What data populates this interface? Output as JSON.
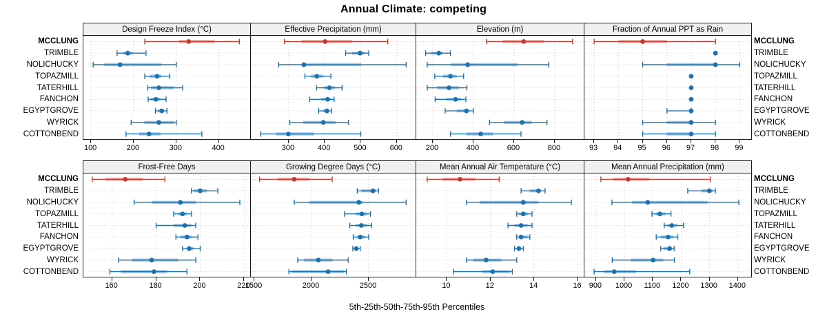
{
  "title": "Annual Climate: competing",
  "caption": "5th-25th-50th-75th-95th Percentiles",
  "percentile_labels": [
    "5th",
    "25th",
    "50th",
    "75th",
    "95th"
  ],
  "stations": [
    "MCCLUNG",
    "TRIMBLE",
    "NOLICHUCKY",
    "TOPAZMILL",
    "TATERHILL",
    "FANCHON",
    "EGYPTGROVE",
    "WYRICK",
    "COTTONBEND"
  ],
  "highlight_station": "MCCLUNG",
  "colors": {
    "highlight": "#c03a2f",
    "normal": "#1c72ae",
    "band_opacity": 0.42,
    "grid_vertical": "#c8c8c8",
    "grid_row": "#d2d2d2",
    "grid_row_highlight": "#efb8b2",
    "header_bg": "#f0f0f0",
    "border": "#1a1a1a"
  },
  "chart_data": [
    {
      "type": "dot-interval",
      "title": "Design Freeze Index (°C)",
      "row": 0,
      "col": 0,
      "xlim": [
        82,
        475
      ],
      "ticks": [
        100,
        200,
        300,
        400
      ],
      "series": [
        {
          "name": "MCCLUNG",
          "percentiles": [
            226,
            306,
            329,
            390,
            448
          ]
        },
        {
          "name": "TRIMBLE",
          "percentiles": [
            161,
            176,
            186,
            198,
            229
          ]
        },
        {
          "name": "NOLICHUCKY",
          "percentiles": [
            105,
            131,
            168,
            265,
            300
          ]
        },
        {
          "name": "TOPAZMILL",
          "percentiles": [
            226,
            238,
            255,
            265,
            284
          ]
        },
        {
          "name": "TATERHILL",
          "percentiles": [
            233,
            241,
            259,
            295,
            315
          ]
        },
        {
          "name": "FANCHON",
          "percentiles": [
            234,
            240,
            252,
            263,
            276
          ]
        },
        {
          "name": "EGYPTGROVE",
          "percentiles": [
            251,
            257,
            266,
            271,
            278
          ]
        },
        {
          "name": "WYRICK",
          "percentiles": [
            194,
            225,
            259,
            295,
            300
          ]
        },
        {
          "name": "COTTONBEND",
          "percentiles": [
            182,
            213,
            236,
            263,
            360
          ]
        }
      ]
    },
    {
      "type": "dot-interval",
      "title": "Effective Precipitation (mm)",
      "row": 0,
      "col": 1,
      "xlim": [
        195,
        654
      ],
      "ticks": [
        300,
        400,
        500,
        600
      ],
      "series": [
        {
          "name": "MCCLUNG",
          "percentiles": [
            288,
            336,
            401,
            476,
            575
          ]
        },
        {
          "name": "TRIMBLE",
          "percentiles": [
            458,
            476,
            498,
            511,
            522
          ]
        },
        {
          "name": "NOLICHUCKY",
          "percentiles": [
            272,
            339,
            342,
            501,
            626
          ]
        },
        {
          "name": "TOPAZMILL",
          "percentiles": [
            345,
            362,
            378,
            396,
            417
          ]
        },
        {
          "name": "TATERHILL",
          "percentiles": [
            377,
            398,
            413,
            428,
            448
          ]
        },
        {
          "name": "FANCHON",
          "percentiles": [
            358,
            390,
            408,
            416,
            426
          ]
        },
        {
          "name": "EGYPTGROVE",
          "percentiles": [
            383,
            396,
            406,
            412,
            419
          ]
        },
        {
          "name": "WYRICK",
          "percentiles": [
            303,
            340,
            396,
            430,
            466
          ]
        },
        {
          "name": "COTTONBEND",
          "percentiles": [
            222,
            265,
            299,
            371,
            500
          ]
        }
      ]
    },
    {
      "type": "dot-interval",
      "title": "Elevation (m)",
      "row": 0,
      "col": 2,
      "xlim": [
        119,
        946
      ],
      "ticks": [
        200,
        400,
        600,
        800
      ],
      "series": [
        {
          "name": "MCCLUNG",
          "percentiles": [
            464,
            545,
            647,
            748,
            888
          ]
        },
        {
          "name": "TRIMBLE",
          "percentiles": [
            165,
            193,
            230,
            250,
            287
          ]
        },
        {
          "name": "NOLICHUCKY",
          "percentiles": [
            173,
            289,
            372,
            617,
            770
          ]
        },
        {
          "name": "TOPAZMILL",
          "percentiles": [
            210,
            250,
            287,
            318,
            352
          ]
        },
        {
          "name": "TATERHILL",
          "percentiles": [
            173,
            221,
            280,
            329,
            368
          ]
        },
        {
          "name": "FANCHON",
          "percentiles": [
            212,
            267,
            312,
            340,
            363
          ]
        },
        {
          "name": "EGYPTGROVE",
          "percentiles": [
            261,
            318,
            366,
            375,
            400
          ]
        },
        {
          "name": "WYRICK",
          "percentiles": [
            479,
            550,
            640,
            687,
            762
          ]
        },
        {
          "name": "COTTONBEND",
          "percentiles": [
            287,
            366,
            436,
            496,
            634
          ]
        }
      ]
    },
    {
      "type": "dot-interval",
      "title": "Fraction of Annual PPT as Rain",
      "row": 0,
      "col": 3,
      "xlim": [
        92.6,
        99.5
      ],
      "ticks": [
        93,
        94,
        95,
        96,
        97,
        98,
        99
      ],
      "series": [
        {
          "name": "MCCLUNG",
          "percentiles": [
            93,
            94,
            95,
            96,
            98
          ]
        },
        {
          "name": "TRIMBLE",
          "percentiles": [
            98,
            98,
            98,
            98,
            98
          ]
        },
        {
          "name": "NOLICHUCKY",
          "percentiles": [
            95,
            96,
            98,
            98,
            99
          ]
        },
        {
          "name": "TOPAZMILL",
          "percentiles": [
            97,
            97,
            97,
            97,
            97
          ]
        },
        {
          "name": "TATERHILL",
          "percentiles": [
            97,
            97,
            97,
            97,
            97
          ]
        },
        {
          "name": "FANCHON",
          "percentiles": [
            97,
            97,
            97,
            97,
            97
          ]
        },
        {
          "name": "EGYPTGROVE",
          "percentiles": [
            96,
            97,
            97,
            97,
            97
          ]
        },
        {
          "name": "WYRICK",
          "percentiles": [
            95,
            96,
            97,
            97,
            98
          ]
        },
        {
          "name": "COTTONBEND",
          "percentiles": [
            95,
            96,
            97,
            97,
            98
          ]
        }
      ]
    },
    {
      "type": "dot-interval",
      "title": "Frost-Free Days",
      "row": 1,
      "col": 0,
      "xlim": [
        147,
        223
      ],
      "ticks": [
        160,
        180,
        200,
        220
      ],
      "series": [
        {
          "name": "MCCLUNG",
          "percentiles": [
            151,
            157,
            166,
            174,
            184
          ]
        },
        {
          "name": "TRIMBLE",
          "percentiles": [
            196,
            197,
            200,
            203,
            208
          ]
        },
        {
          "name": "NOLICHUCKY",
          "percentiles": [
            170,
            178,
            191,
            198,
            218
          ]
        },
        {
          "name": "TOPAZMILL",
          "percentiles": [
            188,
            190,
            192,
            194,
            196
          ]
        },
        {
          "name": "TATERHILL",
          "percentiles": [
            180,
            188,
            193,
            196,
            198
          ]
        },
        {
          "name": "FANCHON",
          "percentiles": [
            189,
            191,
            194,
            196,
            199
          ]
        },
        {
          "name": "EGYPTGROVE",
          "percentiles": [
            192,
            194,
            195,
            197,
            200
          ]
        },
        {
          "name": "WYRICK",
          "percentiles": [
            163,
            169,
            178,
            190,
            198
          ]
        },
        {
          "name": "COTTONBEND",
          "percentiles": [
            159,
            164,
            179,
            185,
            194
          ]
        }
      ]
    },
    {
      "type": "dot-interval",
      "title": "Growing Degree Days (°C)",
      "row": 1,
      "col": 1,
      "xlim": [
        1470,
        2916
      ],
      "ticks": [
        1500,
        2000,
        2500
      ],
      "series": [
        {
          "name": "MCCLUNG",
          "percentiles": [
            1546,
            1703,
            1849,
            1984,
            2181
          ]
        },
        {
          "name": "TRIMBLE",
          "percentiles": [
            2400,
            2436,
            2538,
            2562,
            2586
          ]
        },
        {
          "name": "NOLICHUCKY",
          "percentiles": [
            1849,
            1980,
            2414,
            2450,
            2827
          ]
        },
        {
          "name": "TOPAZMILL",
          "percentiles": [
            2289,
            2385,
            2440,
            2482,
            2516
          ]
        },
        {
          "name": "TATERHILL",
          "percentiles": [
            2335,
            2390,
            2436,
            2486,
            2526
          ]
        },
        {
          "name": "FANCHON",
          "percentiles": [
            2365,
            2402,
            2426,
            2470,
            2500
          ]
        },
        {
          "name": "EGYPTGROVE",
          "percentiles": [
            2361,
            2375,
            2392,
            2410,
            2426
          ]
        },
        {
          "name": "WYRICK",
          "percentiles": [
            1880,
            1934,
            2060,
            2185,
            2321
          ]
        },
        {
          "name": "COTTONBEND",
          "percentiles": [
            1803,
            1823,
            2145,
            2285,
            2305
          ]
        }
      ]
    },
    {
      "type": "dot-interval",
      "title": "Mean Annual Air Temperature (°C)",
      "row": 1,
      "col": 2,
      "xlim": [
        8.6,
        16.3
      ],
      "ticks": [
        10,
        12,
        14,
        16
      ],
      "series": [
        {
          "name": "MCCLUNG",
          "percentiles": [
            9.1,
            9.8,
            10.6,
            11.3,
            12.4
          ]
        },
        {
          "name": "TRIMBLE",
          "percentiles": [
            13.4,
            13.8,
            14.2,
            14.3,
            14.5
          ]
        },
        {
          "name": "NOLICHUCKY",
          "percentiles": [
            10.9,
            11.5,
            13.5,
            14.2,
            15.7
          ]
        },
        {
          "name": "TOPAZMILL",
          "percentiles": [
            13.2,
            13.3,
            13.5,
            13.7,
            13.9
          ]
        },
        {
          "name": "TATERHILL",
          "percentiles": [
            12.8,
            13.1,
            13.4,
            13.7,
            13.9
          ]
        },
        {
          "name": "FANCHON",
          "percentiles": [
            13.2,
            13.3,
            13.4,
            13.7,
            13.8
          ]
        },
        {
          "name": "EGYPTGROVE",
          "percentiles": [
            13.1,
            13.2,
            13.3,
            13.4,
            13.5
          ]
        },
        {
          "name": "WYRICK",
          "percentiles": [
            10.9,
            11.2,
            11.8,
            12.5,
            13.2
          ]
        },
        {
          "name": "COTTONBEND",
          "percentiles": [
            10.3,
            11.6,
            12.1,
            12.9,
            13.0
          ]
        }
      ]
    },
    {
      "type": "dot-interval",
      "title": "Mean Annual Precipitation (mm)",
      "row": 1,
      "col": 3,
      "xlim": [
        859,
        1449
      ],
      "ticks": [
        900,
        1000,
        1100,
        1200,
        1300,
        1400
      ],
      "series": [
        {
          "name": "MCCLUNG",
          "percentiles": [
            917,
            959,
            1013,
            1088,
            1303
          ]
        },
        {
          "name": "TRIMBLE",
          "percentiles": [
            1223,
            1271,
            1299,
            1311,
            1320
          ]
        },
        {
          "name": "NOLICHUCKY",
          "percentiles": [
            956,
            1027,
            1082,
            1293,
            1403
          ]
        },
        {
          "name": "TOPAZMILL",
          "percentiles": [
            1097,
            1110,
            1125,
            1144,
            1164
          ]
        },
        {
          "name": "TATERHILL",
          "percentiles": [
            1140,
            1152,
            1167,
            1186,
            1208
          ]
        },
        {
          "name": "FANCHON",
          "percentiles": [
            1112,
            1128,
            1154,
            1172,
            1188
          ]
        },
        {
          "name": "EGYPTGROVE",
          "percentiles": [
            1128,
            1137,
            1159,
            1167,
            1175
          ]
        },
        {
          "name": "WYRICK",
          "percentiles": [
            957,
            1022,
            1101,
            1137,
            1176
          ]
        },
        {
          "name": "COTTONBEND",
          "percentiles": [
            893,
            927,
            964,
            1041,
            1230
          ]
        }
      ]
    }
  ]
}
